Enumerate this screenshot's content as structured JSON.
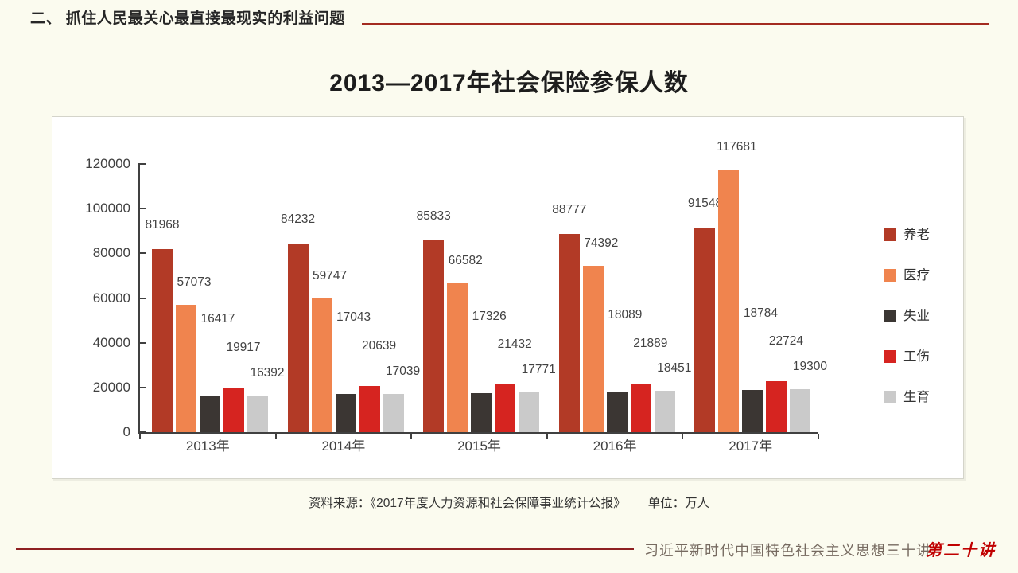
{
  "header": {
    "title": "二、 抓住人民最关心最直接最现实的利益问题"
  },
  "title": "2013—2017年社会保险参保人数",
  "chart_data": {
    "type": "bar",
    "title": "2013—2017年社会保险参保人数",
    "categories": [
      "2013年",
      "2014年",
      "2015年",
      "2016年",
      "2017年"
    ],
    "series": [
      {
        "name": "养老",
        "color": "#B23A26",
        "values": [
          81968,
          84232,
          85833,
          88777,
          91548
        ]
      },
      {
        "name": "医疗",
        "color": "#F0844E",
        "values": [
          57073,
          59747,
          66582,
          74392,
          117681
        ]
      },
      {
        "name": "失业",
        "color": "#3B3633",
        "values": [
          16417,
          17043,
          17326,
          18089,
          18784
        ]
      },
      {
        "name": "工伤",
        "color": "#D62420",
        "values": [
          19917,
          20639,
          21432,
          21889,
          22724
        ]
      },
      {
        "name": "生育",
        "color": "#CACACA",
        "values": [
          16392,
          17039,
          17771,
          18451,
          19300
        ]
      }
    ],
    "y_axis": {
      "min": 0,
      "max": 120000,
      "step": 20000
    },
    "xlabel": "",
    "ylabel": "",
    "unit": "万人",
    "grid": false,
    "legend_position": "right",
    "data_labels": true
  },
  "source": {
    "text": "资料来源：《2017年度人力资源和社会保障事业统计公报》",
    "unit": "单位：万人"
  },
  "footer": {
    "book": "习近平新时代中国特色社会主义思想三十讲",
    "lecture": "第二十讲"
  },
  "colors": {
    "background": "#FBFBEF",
    "panel": "#FFFFFF",
    "header_line": "#A32B20",
    "footer_line": "#8E2022",
    "lecture_red": "#C00000",
    "axis": "#404040"
  }
}
